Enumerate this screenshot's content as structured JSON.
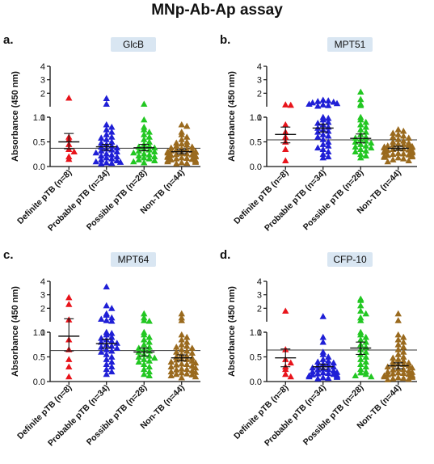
{
  "figure_title": "MNp-Ab-Ap assay",
  "categories": [
    "Definite pTB (n=8)",
    "Probable pTB (n=34)",
    "Possible pTB (n=28)",
    "Non-TB (n=44)"
  ],
  "colors": [
    "#e8141b",
    "#1f1fd6",
    "#22c722",
    "#9a6a1e"
  ],
  "markers": [
    "triangle",
    "triangle",
    "triangle",
    "triangle"
  ],
  "panels": [
    {
      "letter": "a.",
      "title": "GlcB",
      "ylabel": "Absorbance (450 nm)",
      "cutoff": 0.37,
      "ylim_lower": [
        0,
        1
      ],
      "ylim_upper": [
        1,
        4
      ],
      "ticks_lower": [
        "0.0",
        "0.5",
        "1.0"
      ],
      "ticks_upper": [
        "1",
        "2",
        "3",
        "4"
      ],
      "groups": [
        {
          "values": [
            1.65,
            0.6,
            0.55,
            0.45,
            0.35,
            0.3,
            0.2,
            0.15
          ],
          "mean": 0.5,
          "sem_low": 0.36,
          "sem_high": 0.67
        },
        {
          "values": [
            1.62,
            1.2,
            0.85,
            0.8,
            0.75,
            0.7,
            0.65,
            0.6,
            0.58,
            0.55,
            0.5,
            0.48,
            0.45,
            0.42,
            0.4,
            0.38,
            0.36,
            0.34,
            0.32,
            0.3,
            0.28,
            0.26,
            0.24,
            0.22,
            0.2,
            0.18,
            0.16,
            0.14,
            0.12,
            0.1,
            0.09,
            0.08,
            0.07,
            0.06
          ],
          "mean": 0.4,
          "sem_low": 0.33,
          "sem_high": 0.45
        },
        {
          "values": [
            1.2,
            0.95,
            0.8,
            0.75,
            0.7,
            0.65,
            0.6,
            0.55,
            0.5,
            0.45,
            0.42,
            0.4,
            0.38,
            0.36,
            0.34,
            0.32,
            0.3,
            0.28,
            0.26,
            0.24,
            0.22,
            0.2,
            0.18,
            0.16,
            0.14,
            0.12,
            0.1,
            0.08
          ],
          "mean": 0.38,
          "sem_low": 0.32,
          "sem_high": 0.45
        },
        {
          "values": [
            0.85,
            0.82,
            0.7,
            0.65,
            0.6,
            0.55,
            0.5,
            0.48,
            0.46,
            0.44,
            0.42,
            0.4,
            0.38,
            0.36,
            0.35,
            0.34,
            0.33,
            0.32,
            0.31,
            0.3,
            0.29,
            0.28,
            0.27,
            0.26,
            0.25,
            0.24,
            0.23,
            0.22,
            0.21,
            0.2,
            0.19,
            0.18,
            0.17,
            0.16,
            0.15,
            0.14,
            0.13,
            0.12,
            0.11,
            0.1,
            0.09,
            0.08,
            0.07,
            0.06
          ],
          "mean": 0.3,
          "sem_low": 0.26,
          "sem_high": 0.34
        }
      ]
    },
    {
      "letter": "b.",
      "title": "MPT51",
      "ylabel": "Absorbance (450 nm)",
      "cutoff": 0.54,
      "ylim_lower": [
        0,
        1
      ],
      "ylim_upper": [
        1,
        4
      ],
      "ticks_lower": [
        "0.0",
        "0.5",
        "1.0"
      ],
      "ticks_upper": [
        "1",
        "2",
        "3",
        "4"
      ],
      "groups": [
        {
          "values": [
            1.15,
            1.12,
            0.85,
            0.7,
            0.6,
            0.5,
            0.35,
            0.12
          ],
          "mean": 0.65,
          "sem_low": 0.48,
          "sem_high": 0.8
        },
        {
          "values": [
            1.5,
            1.45,
            1.4,
            1.35,
            1.3,
            1.25,
            1.2,
            1.15,
            1.1,
            1.05,
            1.0,
            0.98,
            0.95,
            0.9,
            0.88,
            0.85,
            0.8,
            0.78,
            0.75,
            0.72,
            0.7,
            0.65,
            0.62,
            0.6,
            0.55,
            0.5,
            0.45,
            0.42,
            0.38,
            0.35,
            0.3,
            0.25,
            0.2,
            0.18
          ],
          "mean": 0.78,
          "sem_low": 0.7,
          "sem_high": 0.86
        },
        {
          "values": [
            2.1,
            1.55,
            1.2,
            1.1,
            1.0,
            0.95,
            0.9,
            0.85,
            0.8,
            0.75,
            0.7,
            0.65,
            0.6,
            0.58,
            0.55,
            0.52,
            0.5,
            0.48,
            0.45,
            0.42,
            0.4,
            0.38,
            0.35,
            0.32,
            0.3,
            0.25,
            0.22,
            0.18
          ],
          "mean": 0.57,
          "sem_low": 0.48,
          "sem_high": 0.66
        },
        {
          "values": [
            0.75,
            0.72,
            0.68,
            0.65,
            0.62,
            0.6,
            0.58,
            0.55,
            0.52,
            0.5,
            0.48,
            0.46,
            0.45,
            0.44,
            0.43,
            0.42,
            0.41,
            0.4,
            0.39,
            0.38,
            0.37,
            0.36,
            0.35,
            0.34,
            0.33,
            0.32,
            0.31,
            0.3,
            0.29,
            0.28,
            0.27,
            0.26,
            0.25,
            0.24,
            0.23,
            0.22,
            0.21,
            0.2,
            0.19,
            0.18,
            0.16,
            0.14,
            0.12,
            0.1
          ],
          "mean": 0.37,
          "sem_low": 0.33,
          "sem_high": 0.41
        }
      ]
    },
    {
      "letter": "c.",
      "title": "MPT64",
      "ylabel": "Absorbance (450 nm)",
      "cutoff": 0.63,
      "ylim_lower": [
        0,
        1
      ],
      "ylim_upper": [
        1,
        4
      ],
      "ticks_lower": [
        "0.0",
        "0.5",
        "1.0"
      ],
      "ticks_upper": [
        "1",
        "2",
        "3",
        "4"
      ],
      "groups": [
        {
          "values": [
            2.8,
            2.3,
            1.15,
            0.85,
            0.65,
            0.45,
            0.3,
            0.1
          ],
          "mean": 0.92,
          "sem_low": 0.62,
          "sem_high": 1.22
        },
        {
          "values": [
            3.6,
            2.2,
            2.0,
            1.6,
            1.5,
            1.3,
            1.2,
            1.1,
            1.05,
            1.0,
            0.98,
            0.95,
            0.9,
            0.88,
            0.85,
            0.82,
            0.8,
            0.78,
            0.75,
            0.72,
            0.7,
            0.68,
            0.65,
            0.62,
            0.6,
            0.55,
            0.5,
            0.45,
            0.4,
            0.35,
            0.3,
            0.25,
            0.2,
            0.15
          ],
          "mean": 0.77,
          "sem_low": 0.68,
          "sem_high": 0.86
        },
        {
          "values": [
            1.6,
            1.3,
            1.1,
            1.05,
            1.0,
            0.95,
            0.9,
            0.85,
            0.8,
            0.75,
            0.7,
            0.68,
            0.65,
            0.62,
            0.6,
            0.55,
            0.52,
            0.5,
            0.48,
            0.45,
            0.42,
            0.4,
            0.35,
            0.3,
            0.25,
            0.2,
            0.15,
            0.12
          ],
          "mean": 0.6,
          "sem_low": 0.52,
          "sem_high": 0.68
        },
        {
          "values": [
            1.6,
            1.3,
            1.1,
            0.95,
            0.9,
            0.85,
            0.8,
            0.75,
            0.72,
            0.7,
            0.68,
            0.65,
            0.62,
            0.6,
            0.58,
            0.55,
            0.52,
            0.5,
            0.48,
            0.46,
            0.45,
            0.44,
            0.42,
            0.4,
            0.38,
            0.36,
            0.35,
            0.34,
            0.32,
            0.3,
            0.28,
            0.26,
            0.25,
            0.24,
            0.22,
            0.2,
            0.19,
            0.18,
            0.16,
            0.15,
            0.14,
            0.12,
            0.1,
            0.08
          ],
          "mean": 0.48,
          "sem_low": 0.42,
          "sem_high": 0.54
        }
      ]
    },
    {
      "letter": "d.",
      "title": "CFP-10",
      "ylabel": "Absorbance (450 nm)",
      "cutoff": 0.64,
      "ylim_lower": [
        0,
        1
      ],
      "ylim_upper": [
        1,
        4
      ],
      "ticks_lower": [
        "0.0",
        "0.5",
        "1.0"
      ],
      "ticks_upper": [
        "1",
        "2",
        "3",
        "4"
      ],
      "groups": [
        {
          "values": [
            1.8,
            0.65,
            0.45,
            0.38,
            0.3,
            0.25,
            0.15,
            0.1
          ],
          "mean": 0.48,
          "sem_low": 0.3,
          "sem_high": 0.66
        },
        {
          "values": [
            1.4,
            0.9,
            0.8,
            0.6,
            0.55,
            0.5,
            0.45,
            0.42,
            0.4,
            0.38,
            0.36,
            0.34,
            0.32,
            0.3,
            0.28,
            0.26,
            0.25,
            0.24,
            0.22,
            0.2,
            0.19,
            0.18,
            0.17,
            0.16,
            0.15,
            0.14,
            0.13,
            0.12,
            0.11,
            0.1,
            0.09,
            0.08,
            0.07,
            0.06
          ],
          "mean": 0.3,
          "sem_low": 0.25,
          "sem_high": 0.35
        },
        {
          "values": [
            2.7,
            2.6,
            2.2,
            1.8,
            1.6,
            1.3,
            1.1,
            1.0,
            0.95,
            0.9,
            0.85,
            0.8,
            0.75,
            0.7,
            0.65,
            0.6,
            0.55,
            0.5,
            0.45,
            0.4,
            0.35,
            0.3,
            0.25,
            0.2,
            0.18,
            0.15,
            0.12,
            0.1
          ],
          "mean": 0.68,
          "sem_low": 0.55,
          "sem_high": 0.8
        },
        {
          "values": [
            1.6,
            1.1,
            0.95,
            0.9,
            0.85,
            0.8,
            0.75,
            0.7,
            0.65,
            0.6,
            0.55,
            0.5,
            0.48,
            0.45,
            0.42,
            0.4,
            0.38,
            0.36,
            0.35,
            0.34,
            0.32,
            0.3,
            0.28,
            0.26,
            0.25,
            0.24,
            0.22,
            0.2,
            0.19,
            0.18,
            0.17,
            0.16,
            0.15,
            0.14,
            0.13,
            0.12,
            0.11,
            0.1,
            0.09,
            0.08,
            0.07,
            0.06,
            0.05,
            0.04
          ],
          "mean": 0.32,
          "sem_low": 0.26,
          "sem_high": 0.38
        }
      ]
    }
  ],
  "chart_data": [
    {
      "type": "scatter",
      "title": "GlcB",
      "ylabel": "Absorbance (450 nm)",
      "categories": [
        "Definite pTB (n=8)",
        "Probable pTB (n=34)",
        "Possible pTB (n=28)",
        "Non-TB (n=44)"
      ],
      "ylim": [
        0,
        4
      ],
      "axis_break": 1,
      "cutoff": 0.37
    },
    {
      "type": "scatter",
      "title": "MPT51",
      "ylabel": "Absorbance (450 nm)",
      "categories": [
        "Definite pTB (n=8)",
        "Probable pTB (n=34)",
        "Possible pTB (n=28)",
        "Non-TB (n=44)"
      ],
      "ylim": [
        0,
        4
      ],
      "axis_break": 1,
      "cutoff": 0.54
    },
    {
      "type": "scatter",
      "title": "MPT64",
      "ylabel": "Absorbance (450 nm)",
      "categories": [
        "Definite pTB (n=8)",
        "Probable pTB (n=34)",
        "Possible pTB (n=28)",
        "Non-TB (n=44)"
      ],
      "ylim": [
        0,
        4
      ],
      "axis_break": 1,
      "cutoff": 0.63
    },
    {
      "type": "scatter",
      "title": "CFP-10",
      "ylabel": "Absorbance (450 nm)",
      "categories": [
        "Definite pTB (n=8)",
        "Probable pTB (n=34)",
        "Possible pTB (n=28)",
        "Non-TB (n=44)"
      ],
      "ylim": [
        0,
        4
      ],
      "axis_break": 1,
      "cutoff": 0.64
    }
  ]
}
